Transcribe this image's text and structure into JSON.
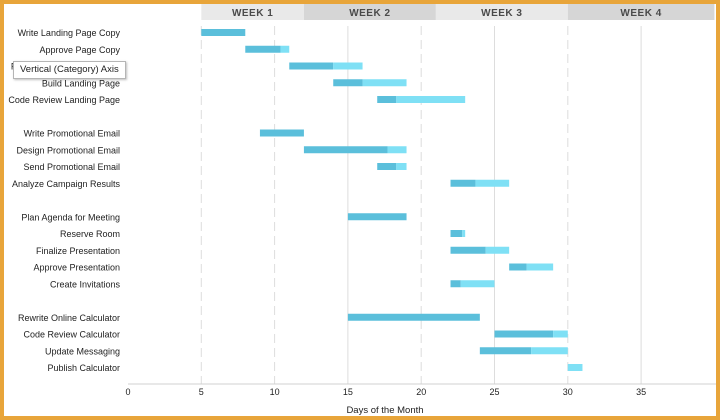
{
  "chart_data": {
    "type": "bar",
    "orientation": "horizontal-stacked",
    "title": "",
    "xlabel": "Days of the Month",
    "ylabel": "",
    "xlim": [
      0,
      40
    ],
    "xticks": [
      0,
      5,
      10,
      15,
      20,
      25,
      30,
      35
    ],
    "weeks": [
      {
        "label": "WEEK 1",
        "start": 5,
        "end": 12,
        "fill": "#e9e9e9"
      },
      {
        "label": "WEEK 2",
        "start": 12,
        "end": 21,
        "fill": "#d6d6d6"
      },
      {
        "label": "WEEK 3",
        "start": 21,
        "end": 30,
        "fill": "#e9e9e9"
      },
      {
        "label": "WEEK 4",
        "start": 30,
        "end": 40,
        "fill": "#d6d6d6"
      }
    ],
    "colors": {
      "done": "#5bbfdb",
      "remaining": "#7fe0f5",
      "grid": "#dddddd",
      "frame": "#e8a53a"
    },
    "tasks": [
      {
        "name": "Write Landing Page Copy",
        "start": 5,
        "done": 3,
        "remaining": 0
      },
      {
        "name": "Approve Page Copy",
        "start": 8,
        "done": 2.4,
        "remaining": 0.6
      },
      {
        "name": "Revise Landing Page Copy",
        "start": 11,
        "done": 3,
        "remaining": 2
      },
      {
        "name": "Build Landing Page",
        "start": 14,
        "done": 2,
        "remaining": 3
      },
      {
        "name": "Code Review Landing Page",
        "start": 17,
        "done": 1.3,
        "remaining": 4.7
      },
      {
        "name": "",
        "start": null,
        "done": 0,
        "remaining": 0
      },
      {
        "name": "Write Promotional Email",
        "start": 9,
        "done": 3,
        "remaining": 0
      },
      {
        "name": "Design Promotional Email",
        "start": 12,
        "done": 5.7,
        "remaining": 1.3
      },
      {
        "name": "Send Promotional Email",
        "start": 17,
        "done": 1.3,
        "remaining": 0.7
      },
      {
        "name": "Analyze Campaign Results",
        "start": 22,
        "done": 1.7,
        "remaining": 2.3
      },
      {
        "name": "",
        "start": null,
        "done": 0,
        "remaining": 0
      },
      {
        "name": "Plan Agenda for Meeting",
        "start": 15,
        "done": 4,
        "remaining": 0
      },
      {
        "name": "Reserve Room",
        "start": 22,
        "done": 0.8,
        "remaining": 0.2
      },
      {
        "name": "Finalize Presentation",
        "start": 22,
        "done": 2.4,
        "remaining": 1.6
      },
      {
        "name": "Approve Presentation",
        "start": 26,
        "done": 1.2,
        "remaining": 1.8
      },
      {
        "name": "Create Invitations",
        "start": 22,
        "done": 0.7,
        "remaining": 2.3
      },
      {
        "name": "",
        "start": null,
        "done": 0,
        "remaining": 0
      },
      {
        "name": "Rewrite Online Calculator",
        "start": 15,
        "done": 9,
        "remaining": 0
      },
      {
        "name": "Code Review Calculator",
        "start": 25,
        "done": 4,
        "remaining": 1
      },
      {
        "name": "Update Messaging",
        "start": 24,
        "done": 3.5,
        "remaining": 2.5
      },
      {
        "name": "Publish Calculator",
        "start": 30,
        "done": 0,
        "remaining": 1
      }
    ]
  },
  "tooltip": {
    "text": "Vertical (Category) Axis"
  }
}
